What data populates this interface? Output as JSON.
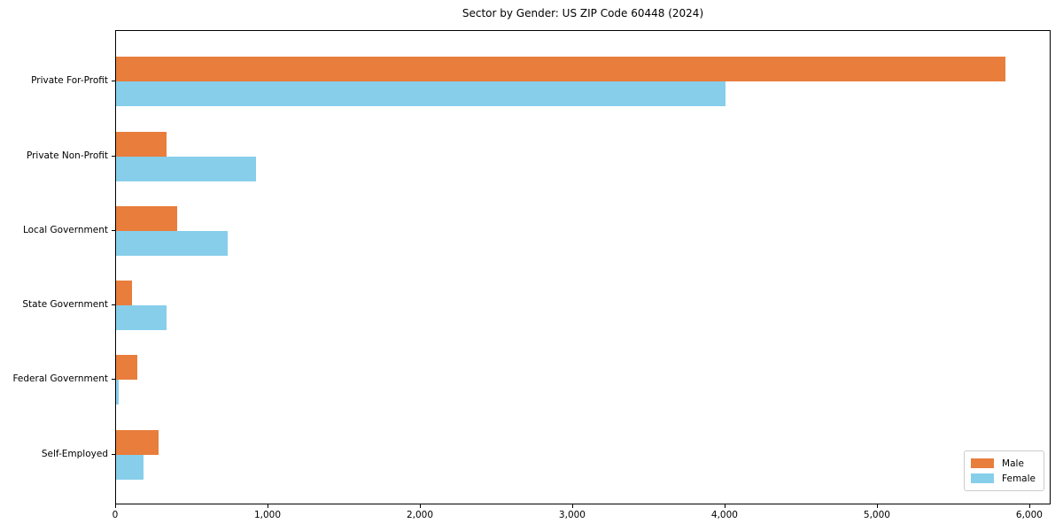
{
  "figure": {
    "background": "#ffffff",
    "text_color": "#000000"
  },
  "chart_data": {
    "type": "bar",
    "orientation": "horizontal",
    "title": "Sector by Gender: US ZIP Code 60448 (2024)",
    "categories": [
      "Private For-Profit",
      "Private Non-Profit",
      "Local Government",
      "State Government",
      "Federal Government",
      "Self-Employed"
    ],
    "series": [
      {
        "name": "Male",
        "color": "#e87d3c",
        "values": [
          5835,
          330,
          400,
          105,
          140,
          280
        ]
      },
      {
        "name": "Female",
        "color": "#87ceeb",
        "values": [
          4000,
          920,
          730,
          330,
          20,
          180
        ]
      }
    ],
    "xlabel": "",
    "ylabel": "",
    "xlim": [
      0,
      6140
    ],
    "xticks": [
      0,
      1000,
      2000,
      3000,
      4000,
      5000,
      6000
    ],
    "xtick_labels": [
      "0",
      "1,000",
      "2,000",
      "3,000",
      "4,000",
      "5,000",
      "6,000"
    ],
    "grid": false,
    "legend": {
      "position": "lower right",
      "entries": [
        "Male",
        "Female"
      ]
    }
  }
}
